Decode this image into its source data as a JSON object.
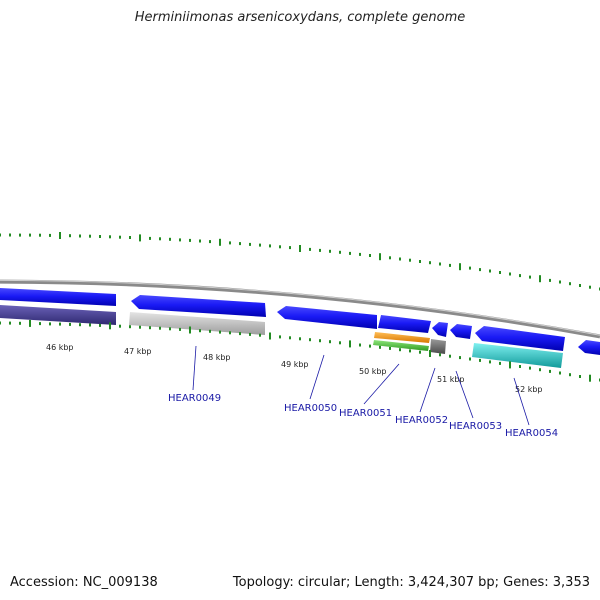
{
  "title": "Herminiimonas arsenicoxydans, complete genome",
  "footer": {
    "accession": "Accession: NC_009138",
    "summary": "Topology: circular; Length: 3,424,307 bp; Genes: 3,353"
  },
  "colors": {
    "background": "#ffffff",
    "backbone": "#8a8a8a",
    "forward_cds": "#1010f0",
    "reverse_gene": "#4b4496",
    "gray_feature": "#c6c6c6",
    "orange_feature": "#f39a1e",
    "green_feature": "#54c042",
    "dark_gray_feature": "#6e6e6e",
    "cyan_feature": "#2fd4d4",
    "tick": "#228b22",
    "gene_label": "#1a1aa6"
  },
  "tick_labels": [
    "46 kbp",
    "47 kbp",
    "48 kbp",
    "49 kbp",
    "50 kbp",
    "51 kbp",
    "52 kbp"
  ],
  "gene_labels": [
    "HEAR0049",
    "HEAR0050",
    "HEAR0051",
    "HEAR0052",
    "HEAR0053",
    "HEAR0054"
  ]
}
